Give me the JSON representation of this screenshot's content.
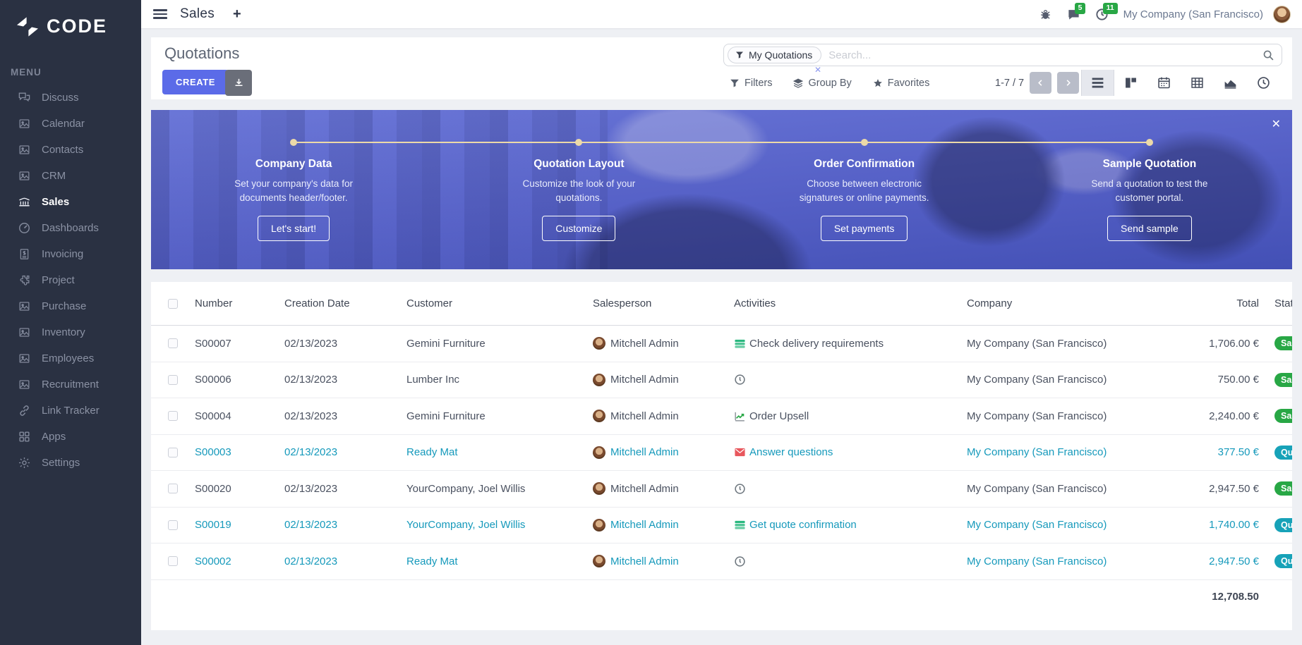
{
  "colors": {
    "accent": "#5b6be8",
    "sidebar_bg": "#2a3142",
    "teal": "#1599bb",
    "badge_success": "#28a745",
    "badge_info": "#17a2b8",
    "badge_count": "#28a745",
    "timeline": "#ecd9a8",
    "banner_top": "#6a76d8",
    "banner_bottom": "#4350b5"
  },
  "app": {
    "logo_text": "CODE",
    "title": "Sales",
    "menu_label": "MENU"
  },
  "topbar": {
    "messages_badge": "5",
    "activities_badge": "11",
    "company": "My Company (San Francisco)"
  },
  "sidebar": {
    "items": [
      {
        "label": "Discuss",
        "icon": "discuss"
      },
      {
        "label": "Calendar",
        "icon": "image"
      },
      {
        "label": "Contacts",
        "icon": "image"
      },
      {
        "label": "CRM",
        "icon": "image"
      },
      {
        "label": "Sales",
        "icon": "sales",
        "active": true
      },
      {
        "label": "Dashboards",
        "icon": "gauge"
      },
      {
        "label": "Invoicing",
        "icon": "invoice"
      },
      {
        "label": "Project",
        "icon": "puzzle"
      },
      {
        "label": "Purchase",
        "icon": "image"
      },
      {
        "label": "Inventory",
        "icon": "image"
      },
      {
        "label": "Employees",
        "icon": "image"
      },
      {
        "label": "Recruitment",
        "icon": "image"
      },
      {
        "label": "Link Tracker",
        "icon": "link"
      },
      {
        "label": "Apps",
        "icon": "apps"
      },
      {
        "label": "Settings",
        "icon": "gear"
      }
    ]
  },
  "control_panel": {
    "title": "Quotations",
    "create_label": "CREATE",
    "filter_chip": "My Quotations",
    "search_placeholder": "Search...",
    "filters_label": "Filters",
    "group_by_label": "Group By",
    "favorites_label": "Favorites",
    "pager": "1-7 / 7",
    "view_switcher": [
      "list",
      "kanban",
      "calendar",
      "pivot",
      "graph",
      "activity"
    ]
  },
  "banner": {
    "close_icon": "✕",
    "steps": [
      {
        "title": "Company Data",
        "desc": "Set your company's data for documents header/footer.",
        "button": "Let's start!"
      },
      {
        "title": "Quotation Layout",
        "desc": "Customize the look of your quotations.",
        "button": "Customize"
      },
      {
        "title": "Order Confirmation",
        "desc": "Choose between electronic signatures or online payments.",
        "button": "Set payments"
      },
      {
        "title": "Sample Quotation",
        "desc": "Send a quotation to test the customer portal.",
        "button": "Send sample"
      }
    ]
  },
  "table": {
    "columns": [
      "Number",
      "Creation Date",
      "Customer",
      "Salesperson",
      "Activities",
      "Company",
      "Total",
      "Status"
    ],
    "rows": [
      {
        "number": "S00007",
        "date": "02/13/2023",
        "customer": "Gemini Furniture",
        "salesperson": "Mitchell Admin",
        "activity": "Check delivery requirements",
        "activity_icon": "list",
        "company": "My Company (San Francisco)",
        "total": "1,706.00 €",
        "status": "Sales Order",
        "status_type": "success",
        "teal": false
      },
      {
        "number": "S00006",
        "date": "02/13/2023",
        "customer": "Lumber Inc",
        "salesperson": "Mitchell Admin",
        "activity": "",
        "activity_icon": "clock",
        "company": "My Company (San Francisco)",
        "total": "750.00 €",
        "status": "Sales Order",
        "status_type": "success",
        "teal": false
      },
      {
        "number": "S00004",
        "date": "02/13/2023",
        "customer": "Gemini Furniture",
        "salesperson": "Mitchell Admin",
        "activity": "Order Upsell",
        "activity_icon": "chart",
        "company": "My Company (San Francisco)",
        "total": "2,240.00 €",
        "status": "Sales Order",
        "status_type": "success",
        "teal": false
      },
      {
        "number": "S00003",
        "date": "02/13/2023",
        "customer": "Ready Mat",
        "salesperson": "Mitchell Admin",
        "activity": "Answer questions",
        "activity_icon": "envelope",
        "company": "My Company (San Francisco)",
        "total": "377.50 €",
        "status": "Quotation",
        "status_type": "info",
        "teal": true
      },
      {
        "number": "S00020",
        "date": "02/13/2023",
        "customer": "YourCompany, Joel Willis",
        "salesperson": "Mitchell Admin",
        "activity": "",
        "activity_icon": "clock",
        "company": "My Company (San Francisco)",
        "total": "2,947.50 €",
        "status": "Sales Order",
        "status_type": "success",
        "teal": false
      },
      {
        "number": "S00019",
        "date": "02/13/2023",
        "customer": "YourCompany, Joel Willis",
        "salesperson": "Mitchell Admin",
        "activity": "Get quote confirmation",
        "activity_icon": "list",
        "company": "My Company (San Francisco)",
        "total": "1,740.00 €",
        "status": "Quotation",
        "status_type": "info",
        "teal": true
      },
      {
        "number": "S00002",
        "date": "02/13/2023",
        "customer": "Ready Mat",
        "salesperson": "Mitchell Admin",
        "activity": "",
        "activity_icon": "clock",
        "company": "My Company (San Francisco)",
        "total": "2,947.50 €",
        "status": "Quotation",
        "status_type": "info",
        "teal": true
      }
    ],
    "footer_total": "12,708.50"
  }
}
